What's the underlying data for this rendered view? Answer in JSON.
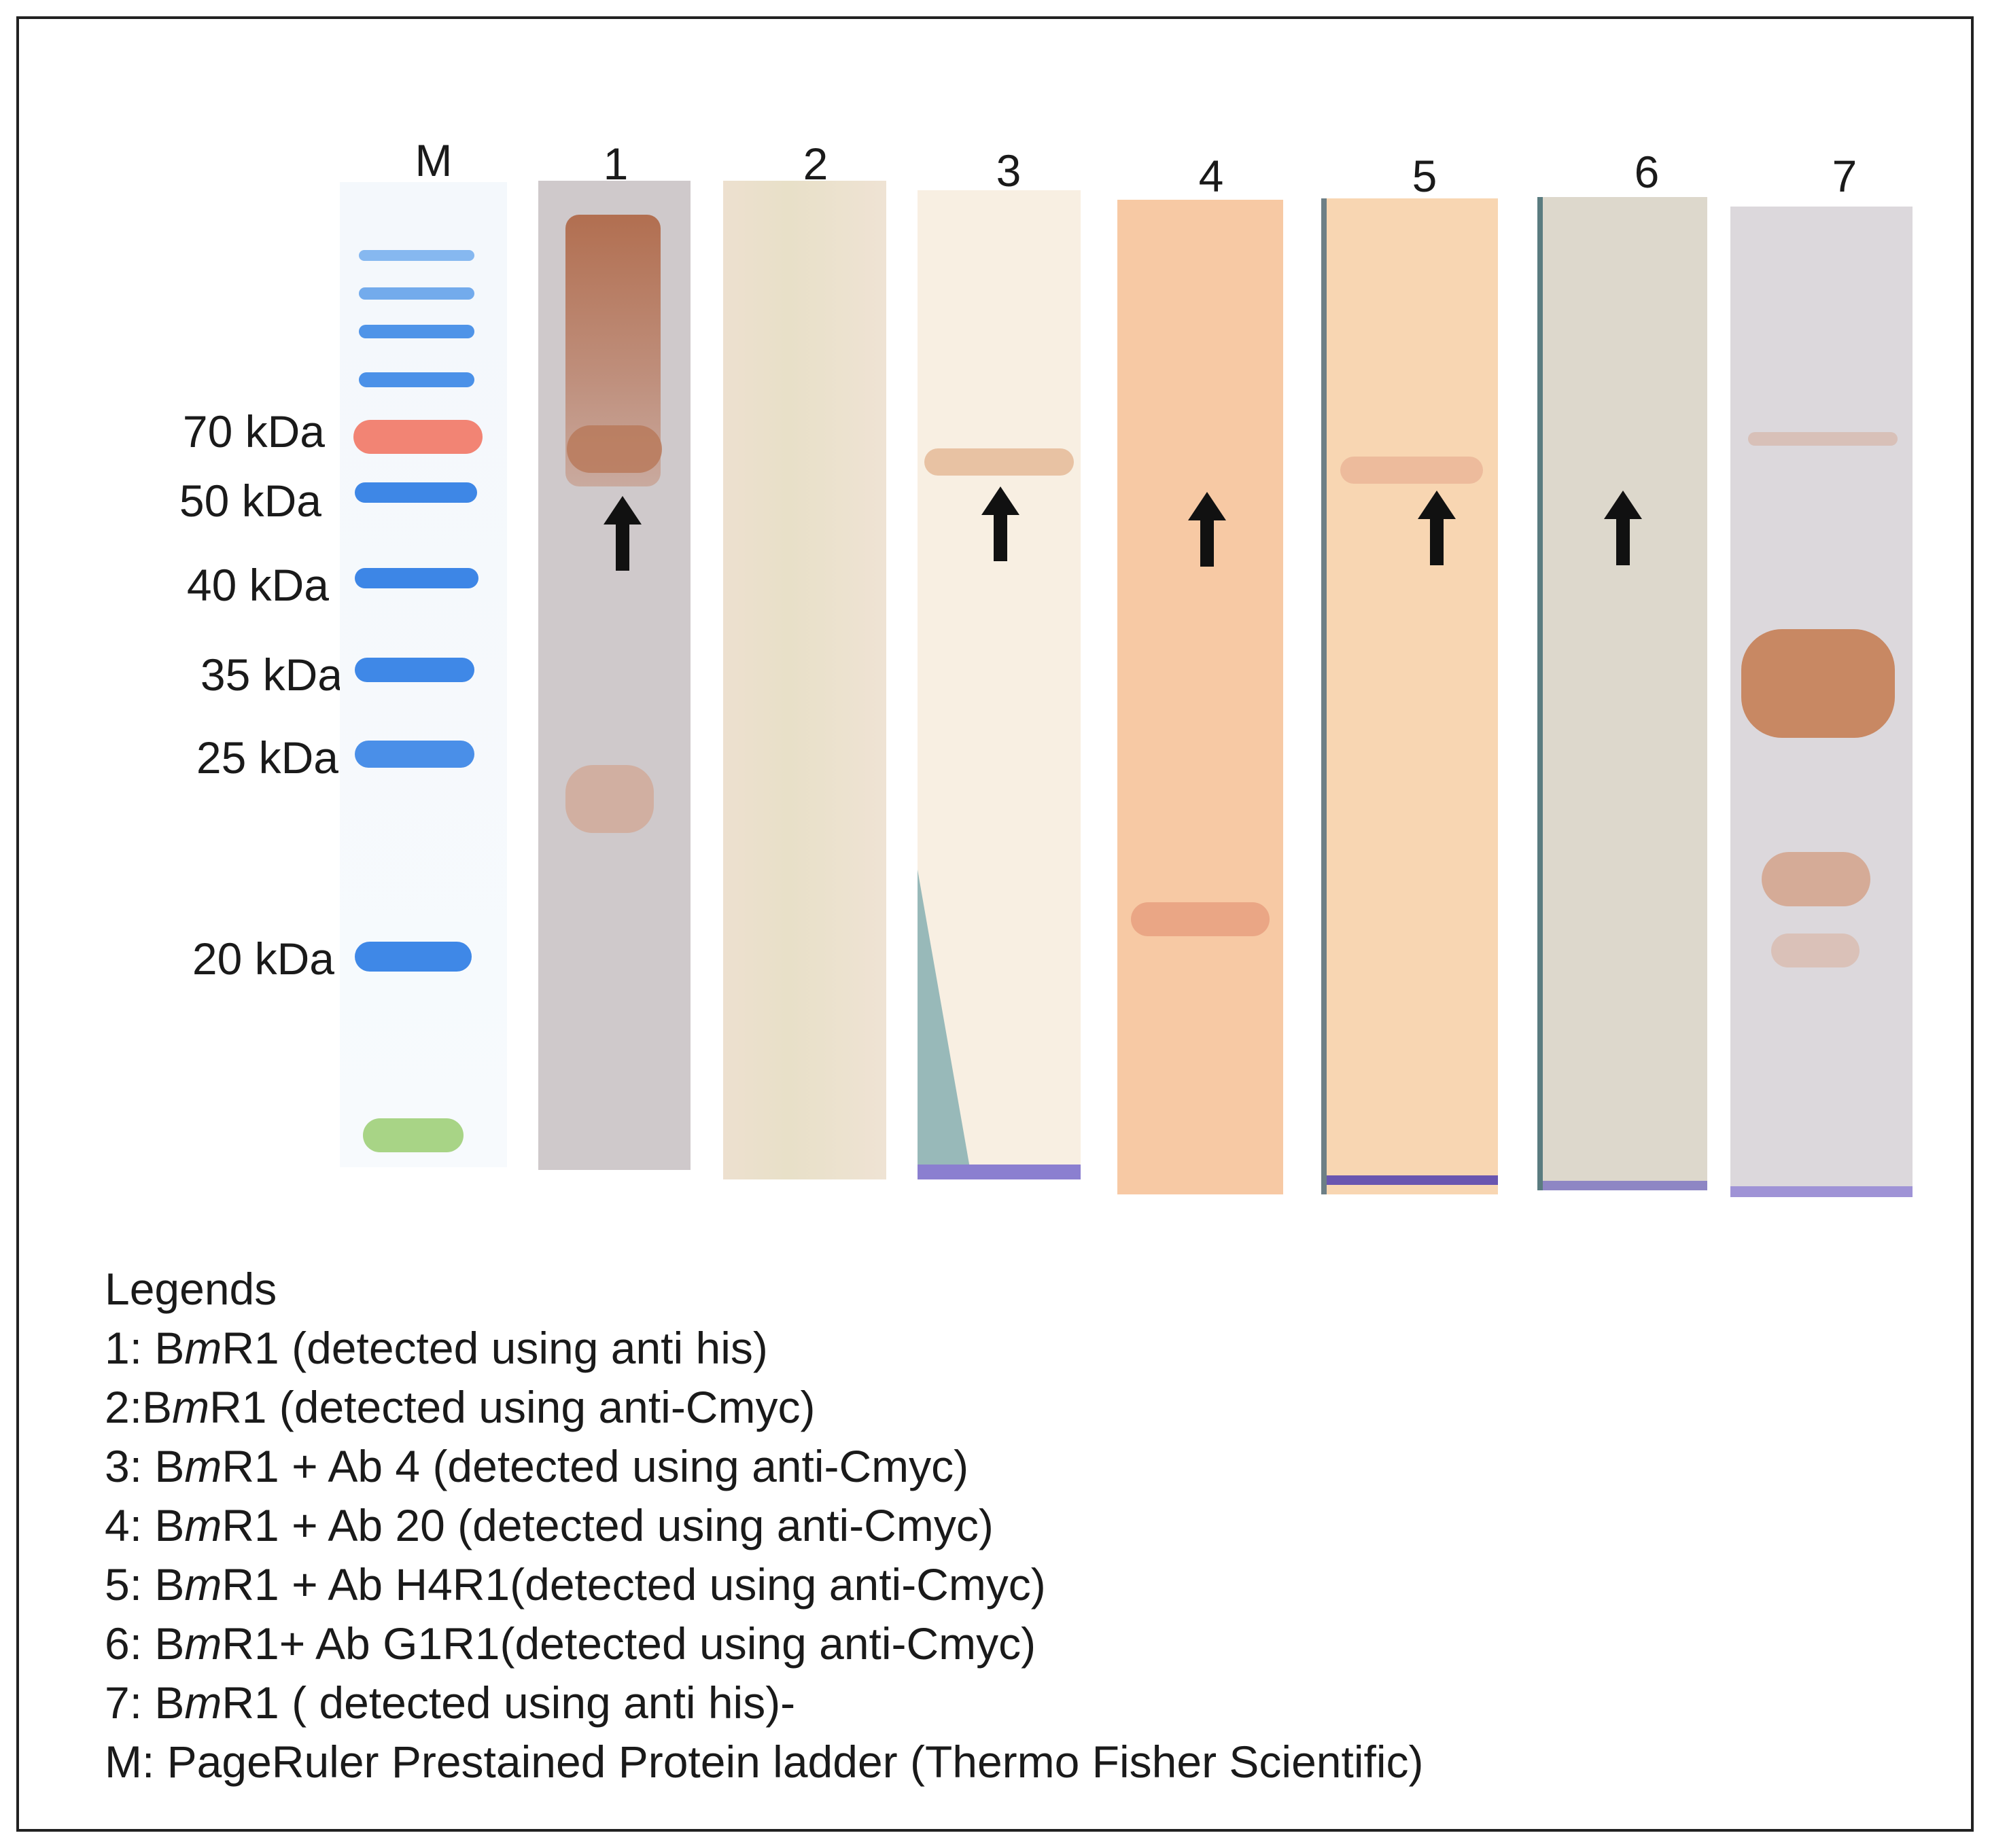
{
  "lane_labels": [
    "M",
    "1",
    "2",
    "3",
    "4",
    "5",
    "6",
    "7"
  ],
  "marker_labels": [
    "70 kDa",
    "50 kDa",
    "40 kDa",
    "35 kDa",
    "25 kDa",
    "20 kDa"
  ],
  "legend": {
    "title": "Legends",
    "items": [
      {
        "pre": "1: B",
        "em": "m",
        "post": "R1 (detected using anti his)"
      },
      {
        "pre": "2:B",
        "em": "m",
        "post": "R1 (detected using anti-Cmyc)"
      },
      {
        "pre": "3: B",
        "em": "m",
        "post": "R1 + Ab 4 (detected using anti-Cmyc)"
      },
      {
        "pre": "4: B",
        "em": "m",
        "post": "R1 + Ab  20 (detected using anti-Cmyc)"
      },
      {
        "pre": "5: B",
        "em": "m",
        "post": "R1 + Ab H4R1(detected using anti-Cmyc)"
      },
      {
        "pre": "6: B",
        "em": "m",
        "post": "R1+ Ab G1R1(detected using anti-Cmyc)"
      },
      {
        "pre": "7: B",
        "em": "m",
        "post": "R1 ( detected using anti his)-"
      },
      {
        "pre": "M: PageRuler  Prestained Protein ladder (Thermo  Fisher Scientific)",
        "em": "",
        "post": ""
      }
    ]
  },
  "colors": {
    "ladder_blue": "#3f86e6",
    "ladder_red": "#f07a6a",
    "ladder_green": "#9fd07a",
    "band_brown": "#b87a5c",
    "arrow": "#111111"
  }
}
